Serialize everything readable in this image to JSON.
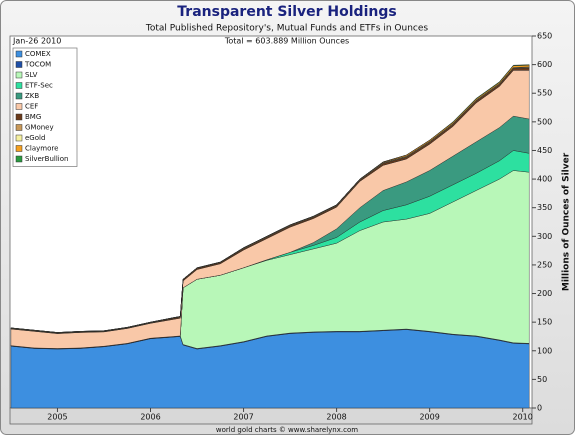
{
  "chart_data": {
    "type": "area",
    "title": "Transparent Silver Holdings",
    "subtitle": "Total Published Repository's, Mutual Funds and ETFs in Ounces",
    "annotations": [
      "Jan-26 2010",
      "Total = 603.889 Million Ounces"
    ],
    "y_label": "Millions of Ounces of Silver",
    "footer": "world gold charts © www.sharelynx.com",
    "stacked": true,
    "grid": false,
    "legend": "top-left",
    "y_axis_side": "right",
    "x": [
      2004.5,
      2004.75,
      2005.0,
      2005.25,
      2005.5,
      2005.75,
      2006.0,
      2006.25,
      2006.32,
      2006.35,
      2006.5,
      2006.75,
      2007.0,
      2007.25,
      2007.5,
      2007.75,
      2008.0,
      2008.25,
      2008.5,
      2008.75,
      2009.0,
      2009.25,
      2009.5,
      2009.75,
      2009.9,
      2010.07
    ],
    "xlim": [
      2004.49,
      2010.1
    ],
    "xticks": [
      2005,
      2006,
      2007,
      2008,
      2009,
      2010
    ],
    "ylim": [
      0,
      650
    ],
    "yticks": [
      0,
      50,
      100,
      150,
      200,
      250,
      300,
      350,
      400,
      450,
      500,
      550,
      600,
      650
    ],
    "series": [
      {
        "name": "COMEX",
        "color": "#3d8fe0",
        "values": [
          108,
          104,
          103,
          104,
          107,
          112,
          121,
          124,
          125,
          110,
          103,
          108,
          115,
          125,
          130,
          132,
          133,
          133,
          135,
          137,
          133,
          128,
          125,
          118,
          113,
          112
        ]
      },
      {
        "name": "TOCOM",
        "color": "#1f4fa8",
        "values": [
          1,
          1,
          1,
          1,
          1,
          1,
          1,
          1,
          1,
          1,
          1,
          1,
          1,
          1,
          1,
          1,
          1,
          1,
          1,
          1,
          1,
          1,
          1,
          1,
          1,
          1
        ]
      },
      {
        "name": "SLV",
        "color": "#b8f7b8",
        "values": [
          0,
          0,
          0,
          0,
          0,
          0,
          0,
          0,
          0,
          99,
          121,
          123,
          129,
          132,
          137,
          145,
          154,
          176,
          189,
          192,
          206,
          231,
          254,
          281,
          301,
          299
        ]
      },
      {
        "name": "ETF-Sec",
        "color": "#2de0a0",
        "values": [
          0,
          0,
          0,
          0,
          0,
          0,
          0,
          0,
          0,
          0,
          0,
          0,
          0,
          1,
          4,
          6,
          10,
          15,
          20,
          25,
          30,
          30,
          30,
          32,
          35,
          33
        ]
      },
      {
        "name": "ZKB",
        "color": "#3a9a80",
        "values": [
          0,
          0,
          0,
          0,
          0,
          0,
          0,
          0,
          0,
          0,
          0,
          0,
          0,
          0,
          0,
          5,
          15,
          25,
          35,
          40,
          45,
          50,
          55,
          58,
          60,
          60
        ]
      },
      {
        "name": "CEF",
        "color": "#f9c8a8",
        "values": [
          29,
          29,
          26,
          27,
          25,
          26,
          26,
          30,
          31,
          12,
          17,
          20,
          31,
          37,
          44,
          42,
          38,
          46,
          44,
          40,
          46,
          52,
          68,
          72,
          80,
          85
        ]
      },
      {
        "name": "BMG",
        "color": "#6b3a1a",
        "values": [
          1,
          1,
          1,
          1,
          1,
          1,
          1,
          2,
          2,
          2,
          2,
          2,
          2,
          2,
          2,
          2,
          2,
          2,
          3,
          3,
          3,
          3,
          3,
          3,
          3,
          4
        ]
      },
      {
        "name": "GMoney",
        "color": "#c89858",
        "values": [
          0,
          0,
          0,
          0,
          0,
          0,
          0,
          0,
          0,
          0,
          0,
          0,
          1,
          1,
          1,
          1,
          1,
          1,
          1,
          1,
          1,
          1,
          1,
          1,
          1,
          1
        ]
      },
      {
        "name": "eGold",
        "color": "#f5f0a0",
        "values": [
          1,
          1,
          1,
          1,
          1,
          1,
          1,
          1,
          1,
          1,
          1,
          1,
          1,
          1,
          1,
          1,
          1,
          1,
          1,
          1,
          1,
          1,
          1,
          1,
          1,
          1
        ]
      },
      {
        "name": "Claymore",
        "color": "#f5a020",
        "values": [
          0,
          0,
          0,
          0,
          0,
          0,
          0,
          0,
          0,
          0,
          0,
          0,
          0,
          0,
          0,
          0,
          0,
          0,
          1,
          2,
          2,
          2,
          2,
          2,
          3,
          3
        ]
      },
      {
        "name": "SilverBullion",
        "color": "#2a9a40",
        "values": [
          0,
          0,
          0,
          0,
          0,
          0,
          0,
          0,
          0,
          0,
          0,
          0,
          0,
          0,
          0,
          0,
          0,
          0,
          0,
          0,
          0,
          1,
          1,
          1,
          1,
          1
        ]
      }
    ]
  }
}
